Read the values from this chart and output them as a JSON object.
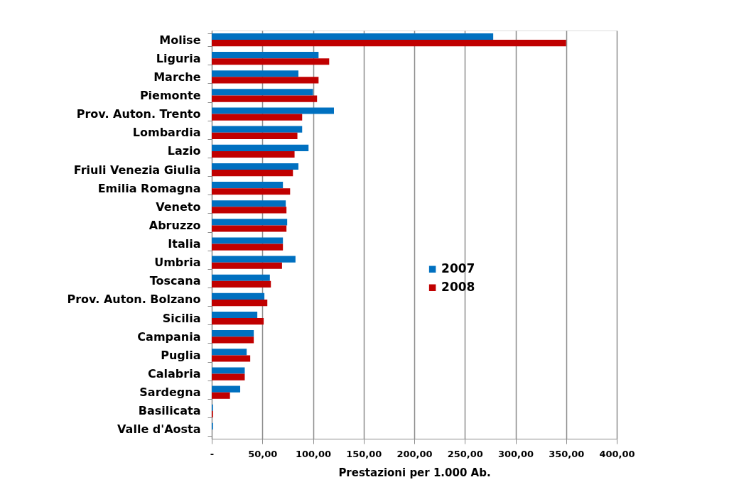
{
  "chart_data": {
    "type": "bar",
    "orientation": "horizontal",
    "xlabel": "Prestazioni per 1.000 Ab.",
    "categories": [
      "Molise",
      "Liguria",
      "Marche",
      "Piemonte",
      "Prov. Auton. Trento",
      "Lombardia",
      "Lazio",
      "Friuli Venezia Giulia",
      "Emilia Romagna",
      "Veneto",
      "Abruzzo",
      "Italia",
      "Umbria",
      "Toscana",
      "Prov. Auton. Bolzano",
      "Sicilia",
      "Campania",
      "Puglia",
      "Calabria",
      "Sardegna",
      "Basilicata",
      "Valle d'Aosta"
    ],
    "series": [
      {
        "name": "2007",
        "color": "#0070c0",
        "values": [
          278,
          105.5,
          85.6,
          100,
          120.7,
          89.3,
          95.6,
          85.6,
          70.3,
          73.1,
          74.5,
          70.3,
          82.7,
          57.4,
          52,
          45,
          41.5,
          34.5,
          32.6,
          28.1,
          1.2,
          1.2
        ]
      },
      {
        "name": "2008",
        "color": "#c00000",
        "values": [
          350,
          116,
          105.5,
          104,
          89.3,
          84.6,
          81.8,
          80.2,
          77.4,
          73.8,
          73.8,
          70.3,
          69.4,
          58.4,
          54.9,
          51.3,
          41.5,
          38,
          32.6,
          18,
          1.2,
          0
        ]
      }
    ],
    "xlim": [
      0,
      400
    ],
    "xticks": [
      {
        "value": 0,
        "label": "-"
      },
      {
        "value": 50,
        "label": "50,00"
      },
      {
        "value": 100,
        "label": "100,00"
      },
      {
        "value": 150,
        "label": "150,00"
      },
      {
        "value": 200,
        "label": "200,00"
      },
      {
        "value": 250,
        "label": "250,00"
      },
      {
        "value": 300,
        "label": "300,00"
      },
      {
        "value": 350,
        "label": "350,00"
      },
      {
        "value": 400,
        "label": "400,00"
      }
    ],
    "grid": "x",
    "legend": "right"
  }
}
